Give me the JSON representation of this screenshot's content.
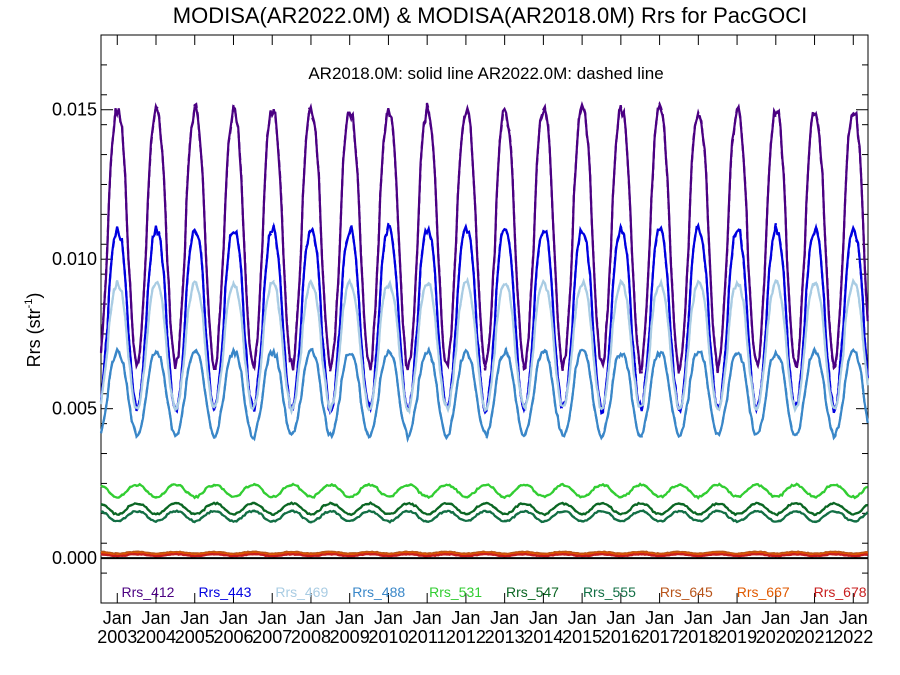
{
  "chart_data": {
    "type": "line",
    "title": "MODISA(AR2022.0M) & MODISA(AR2018.0M)  Rrs for PacGOCI",
    "annotation": "AR2018.0M: solid line   AR2022.0M: dashed line",
    "ylabel": "Rrs (str",
    "ylabel_sup": "-1",
    "ylabel_close": ")",
    "xlim": [
      2002.58,
      2022.38
    ],
    "ylim": [
      -0.0015,
      0.0175
    ],
    "yticks": [
      {
        "value": 0.0,
        "label": "0.000"
      },
      {
        "value": 0.005,
        "label": "0.005"
      },
      {
        "value": 0.01,
        "label": "0.010"
      },
      {
        "value": 0.015,
        "label": "0.015"
      }
    ],
    "xtick_month": "Jan",
    "xticks": [
      "2003",
      "2004",
      "2005",
      "2006",
      "2007",
      "2008",
      "2009",
      "2010",
      "2011",
      "2012",
      "2013",
      "2014",
      "2015",
      "2016",
      "2017",
      "2018",
      "2019",
      "2020",
      "2021",
      "2022"
    ],
    "baseline": 0.0,
    "series": [
      {
        "name": "Rrs_412",
        "color": "#4b0082",
        "mean": 0.0107,
        "amp": 0.0043,
        "phase": 0.0,
        "noise": 0.0004
      },
      {
        "name": "Rrs_443",
        "color": "#0000e0",
        "mean": 0.008,
        "amp": 0.003,
        "phase": 0.0,
        "noise": 0.0003
      },
      {
        "name": "Rrs_469",
        "color": "#a9cce3",
        "mean": 0.0071,
        "amp": 0.0021,
        "phase": 0.0,
        "noise": 0.0002
      },
      {
        "name": "Rrs_488",
        "color": "#3a87c8",
        "mean": 0.0055,
        "amp": 0.0014,
        "phase": 0.0,
        "noise": 0.0002
      },
      {
        "name": "Rrs_531",
        "color": "#32cd32",
        "mean": 0.00225,
        "amp": 0.0002,
        "phase": 3.14,
        "noise": 6e-05
      },
      {
        "name": "Rrs_547",
        "color": "#0b6623",
        "mean": 0.00165,
        "amp": 0.00018,
        "phase": 3.14,
        "noise": 5e-05
      },
      {
        "name": "Rrs_555",
        "color": "#136f45",
        "mean": 0.0014,
        "amp": 0.00017,
        "phase": 3.14,
        "noise": 5e-05
      },
      {
        "name": "Rrs_645",
        "color": "#b8541a",
        "mean": 0.00018,
        "amp": 3e-05,
        "phase": 3.14,
        "noise": 2e-05
      },
      {
        "name": "Rrs_667",
        "color": "#e05a00",
        "mean": 0.00014,
        "amp": 3e-05,
        "phase": 3.14,
        "noise": 2e-05
      },
      {
        "name": "Rrs_678",
        "color": "#c81e1e",
        "mean": 0.0001,
        "amp": 3e-05,
        "phase": 3.14,
        "noise": 2e-05
      }
    ]
  }
}
